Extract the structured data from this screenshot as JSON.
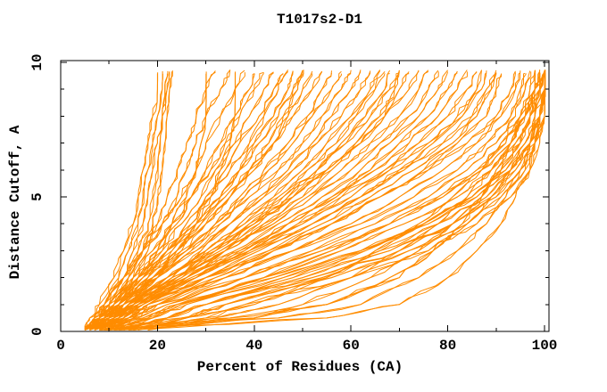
{
  "page": {
    "background": "#ffffff",
    "text_color": "#000000"
  },
  "chart_data": {
    "type": "line",
    "title": "T1017s2-D1",
    "xlabel": "Percent of Residues (CA)",
    "ylabel": "Distance Cutoff, A",
    "xlim": [
      0,
      101
    ],
    "ylim": [
      0,
      10.1
    ],
    "grid": false,
    "legend": "none",
    "curve_color": "#ff8c00",
    "axis_color": "#000000",
    "x_major_ticks": [
      0,
      20,
      40,
      60,
      80,
      100
    ],
    "x_minor_ticks": [
      10,
      30,
      50,
      70,
      90
    ],
    "y_major_ticks": [
      0,
      5,
      10
    ],
    "y_minor_ticks": [
      1,
      2,
      3,
      4,
      6,
      7,
      8,
      9
    ],
    "curves_y_grid": [
      0.05,
      0.5,
      1,
      2,
      3,
      4,
      5,
      6,
      7,
      8,
      9,
      9.7
    ],
    "curves_x": [
      [
        5,
        6,
        8,
        11,
        13,
        15,
        16,
        17,
        18,
        19,
        20,
        20
      ],
      [
        5,
        7,
        9,
        12,
        14,
        16,
        17,
        18,
        19,
        20,
        21,
        21
      ],
      [
        6,
        8,
        10,
        13,
        15,
        17,
        18,
        19,
        20,
        21,
        21.5,
        22
      ],
      [
        5,
        7,
        9,
        13,
        16,
        18,
        19,
        20,
        20.5,
        21,
        22,
        22.5
      ],
      [
        6,
        8,
        11,
        14,
        17,
        19,
        20,
        21,
        21.5,
        22,
        22.5,
        23
      ],
      [
        5,
        8,
        10,
        14,
        17,
        20,
        22,
        24,
        26,
        28,
        30,
        32
      ],
      [
        6,
        9,
        11,
        15,
        18,
        21,
        24,
        26,
        28,
        30,
        33,
        35
      ],
      [
        5,
        7,
        9,
        13,
        17,
        21,
        25,
        28,
        30,
        33,
        36,
        38
      ],
      [
        7,
        10,
        12,
        16,
        20,
        24,
        27,
        30,
        33,
        36,
        39,
        40
      ],
      [
        6,
        8,
        10,
        15,
        19,
        23,
        27,
        31,
        34,
        37,
        40,
        42
      ],
      [
        5,
        8,
        11,
        16,
        21,
        25,
        29,
        32,
        36,
        39,
        42,
        44
      ],
      [
        7,
        10,
        13,
        18,
        22,
        26,
        30,
        34,
        37,
        41,
        44,
        46
      ],
      [
        6,
        9,
        12,
        17,
        22,
        27,
        31,
        35,
        39,
        42,
        45,
        47
      ],
      [
        8,
        11,
        14,
        19,
        24,
        28,
        33,
        37,
        40,
        44,
        47,
        48
      ],
      [
        5,
        8,
        10,
        16,
        22,
        28,
        33,
        37,
        41,
        45,
        48,
        50
      ],
      [
        7,
        10,
        13,
        19,
        25,
        30,
        35,
        39,
        43,
        46,
        49,
        50
      ],
      [
        6,
        9,
        12,
        18,
        24,
        30,
        35,
        40,
        44,
        47,
        50,
        52
      ],
      [
        6,
        9,
        12,
        16,
        20,
        23,
        26,
        28,
        29,
        30,
        30,
        30
      ],
      [
        7,
        10,
        14,
        19,
        24,
        28,
        31,
        33,
        35,
        36,
        36,
        36
      ],
      [
        6,
        8,
        11,
        17,
        23,
        29,
        34,
        39,
        44,
        48,
        52,
        54
      ],
      [
        8,
        11,
        14,
        20,
        26,
        32,
        37,
        42,
        47,
        51,
        54,
        56
      ],
      [
        5,
        9,
        12,
        19,
        26,
        32,
        38,
        43,
        48,
        52,
        56,
        58
      ],
      [
        7,
        10,
        13,
        20,
        27,
        33,
        39,
        45,
        50,
        54,
        58,
        60
      ],
      [
        9,
        12,
        15,
        22,
        29,
        35,
        41,
        47,
        52,
        56,
        60,
        62
      ],
      [
        6,
        9,
        12,
        20,
        28,
        35,
        42,
        48,
        53,
        58,
        62,
        64
      ],
      [
        8,
        11,
        15,
        23,
        30,
        37,
        44,
        50,
        55,
        60,
        64,
        66
      ],
      [
        7,
        10,
        14,
        22,
        30,
        38,
        45,
        51,
        57,
        61,
        65,
        67
      ],
      [
        9,
        13,
        16,
        24,
        32,
        40,
        47,
        53,
        58,
        63,
        67,
        68
      ],
      [
        6,
        10,
        13,
        22,
        31,
        39,
        46,
        53,
        59,
        64,
        68,
        70
      ],
      [
        8,
        12,
        15,
        24,
        33,
        41,
        48,
        55,
        61,
        66,
        69,
        70
      ],
      [
        10,
        14,
        17,
        26,
        34,
        42,
        50,
        56,
        62,
        67,
        70,
        72
      ],
      [
        7,
        10,
        14,
        23,
        32,
        40,
        48,
        55,
        62,
        67,
        72,
        74
      ],
      [
        9,
        12,
        16,
        25,
        34,
        43,
        51,
        58,
        64,
        70,
        74,
        76
      ],
      [
        6,
        9,
        13,
        24,
        34,
        44,
        52,
        60,
        66,
        72,
        76,
        78
      ],
      [
        8,
        11,
        15,
        26,
        36,
        45,
        54,
        62,
        68,
        74,
        78,
        80
      ],
      [
        10,
        14,
        18,
        28,
        38,
        47,
        56,
        64,
        70,
        76,
        80,
        82
      ],
      [
        7,
        10,
        14,
        26,
        37,
        47,
        57,
        65,
        72,
        78,
        82,
        84
      ],
      [
        9,
        13,
        17,
        28,
        39,
        49,
        58,
        67,
        74,
        80,
        84,
        86
      ],
      [
        8,
        12,
        16,
        27,
        39,
        50,
        60,
        68,
        76,
        82,
        86,
        87
      ],
      [
        10,
        14,
        18,
        30,
        41,
        52,
        62,
        70,
        77,
        83,
        87,
        88
      ],
      [
        7,
        11,
        15,
        28,
        40,
        52,
        62,
        71,
        79,
        85,
        88,
        90
      ],
      [
        9,
        13,
        17,
        30,
        43,
        54,
        64,
        73,
        81,
        86,
        89,
        90
      ],
      [
        11,
        15,
        20,
        32,
        44,
        56,
        66,
        75,
        82,
        88,
        90,
        91
      ],
      [
        8,
        12,
        16,
        30,
        44,
        56,
        66,
        76,
        84,
        90,
        93,
        94
      ],
      [
        10,
        15,
        20,
        34,
        48,
        60,
        70,
        79,
        86,
        91,
        94,
        95
      ],
      [
        7,
        13,
        18,
        34,
        48,
        62,
        73,
        82,
        88,
        93,
        95,
        96
      ],
      [
        9,
        16,
        22,
        38,
        52,
        65,
        76,
        84,
        90,
        94,
        96,
        97
      ],
      [
        12,
        19,
        25,
        42,
        56,
        68,
        78,
        86,
        92,
        95,
        97,
        98
      ],
      [
        8,
        14,
        20,
        38,
        54,
        68,
        79,
        87,
        93,
        96,
        98,
        98
      ],
      [
        11,
        18,
        24,
        42,
        58,
        71,
        82,
        89,
        94,
        97,
        98,
        99
      ],
      [
        14,
        22,
        30,
        48,
        63,
        75,
        85,
        91,
        95,
        97,
        99,
        99
      ],
      [
        10,
        19,
        26,
        46,
        62,
        75,
        85,
        92,
        96,
        98,
        99,
        100
      ],
      [
        13,
        22,
        30,
        50,
        66,
        78,
        88,
        93,
        97,
        99,
        100,
        100
      ],
      [
        16,
        26,
        34,
        54,
        70,
        81,
        89,
        94,
        97,
        99,
        100,
        100
      ],
      [
        9,
        17,
        24,
        44,
        62,
        76,
        86,
        93,
        97,
        99,
        100,
        100
      ],
      [
        12,
        22,
        30,
        52,
        68,
        81,
        90,
        95,
        98,
        99,
        100,
        100
      ],
      [
        15,
        26,
        34,
        56,
        72,
        84,
        91,
        96,
        98,
        100,
        100,
        100
      ],
      [
        18,
        30,
        38,
        60,
        76,
        86,
        93,
        97,
        99,
        100,
        100,
        100
      ],
      [
        8,
        25,
        40,
        55,
        65,
        74,
        81,
        87,
        91,
        95,
        98,
        99
      ],
      [
        10,
        32,
        45,
        60,
        70,
        78,
        84,
        89,
        93,
        96,
        99,
        100
      ],
      [
        12,
        40,
        50,
        64,
        74,
        81,
        87,
        91,
        95,
        97,
        99,
        100
      ],
      [
        9,
        35,
        55,
        68,
        77,
        84,
        89,
        93,
        96,
        98,
        100,
        100
      ],
      [
        11,
        45,
        62,
        74,
        82,
        88,
        92,
        95,
        97,
        99,
        100,
        100
      ],
      [
        14,
        55,
        70,
        80,
        86,
        91,
        94,
        97,
        98,
        100,
        100,
        100
      ],
      [
        8,
        40,
        55,
        70,
        77,
        83,
        87,
        90,
        93,
        96,
        98,
        100
      ]
    ]
  },
  "render": {
    "jitter_seed": 1017,
    "jitter_amp": 0.6,
    "subdivisions": 4,
    "echo_passes": 2
  }
}
